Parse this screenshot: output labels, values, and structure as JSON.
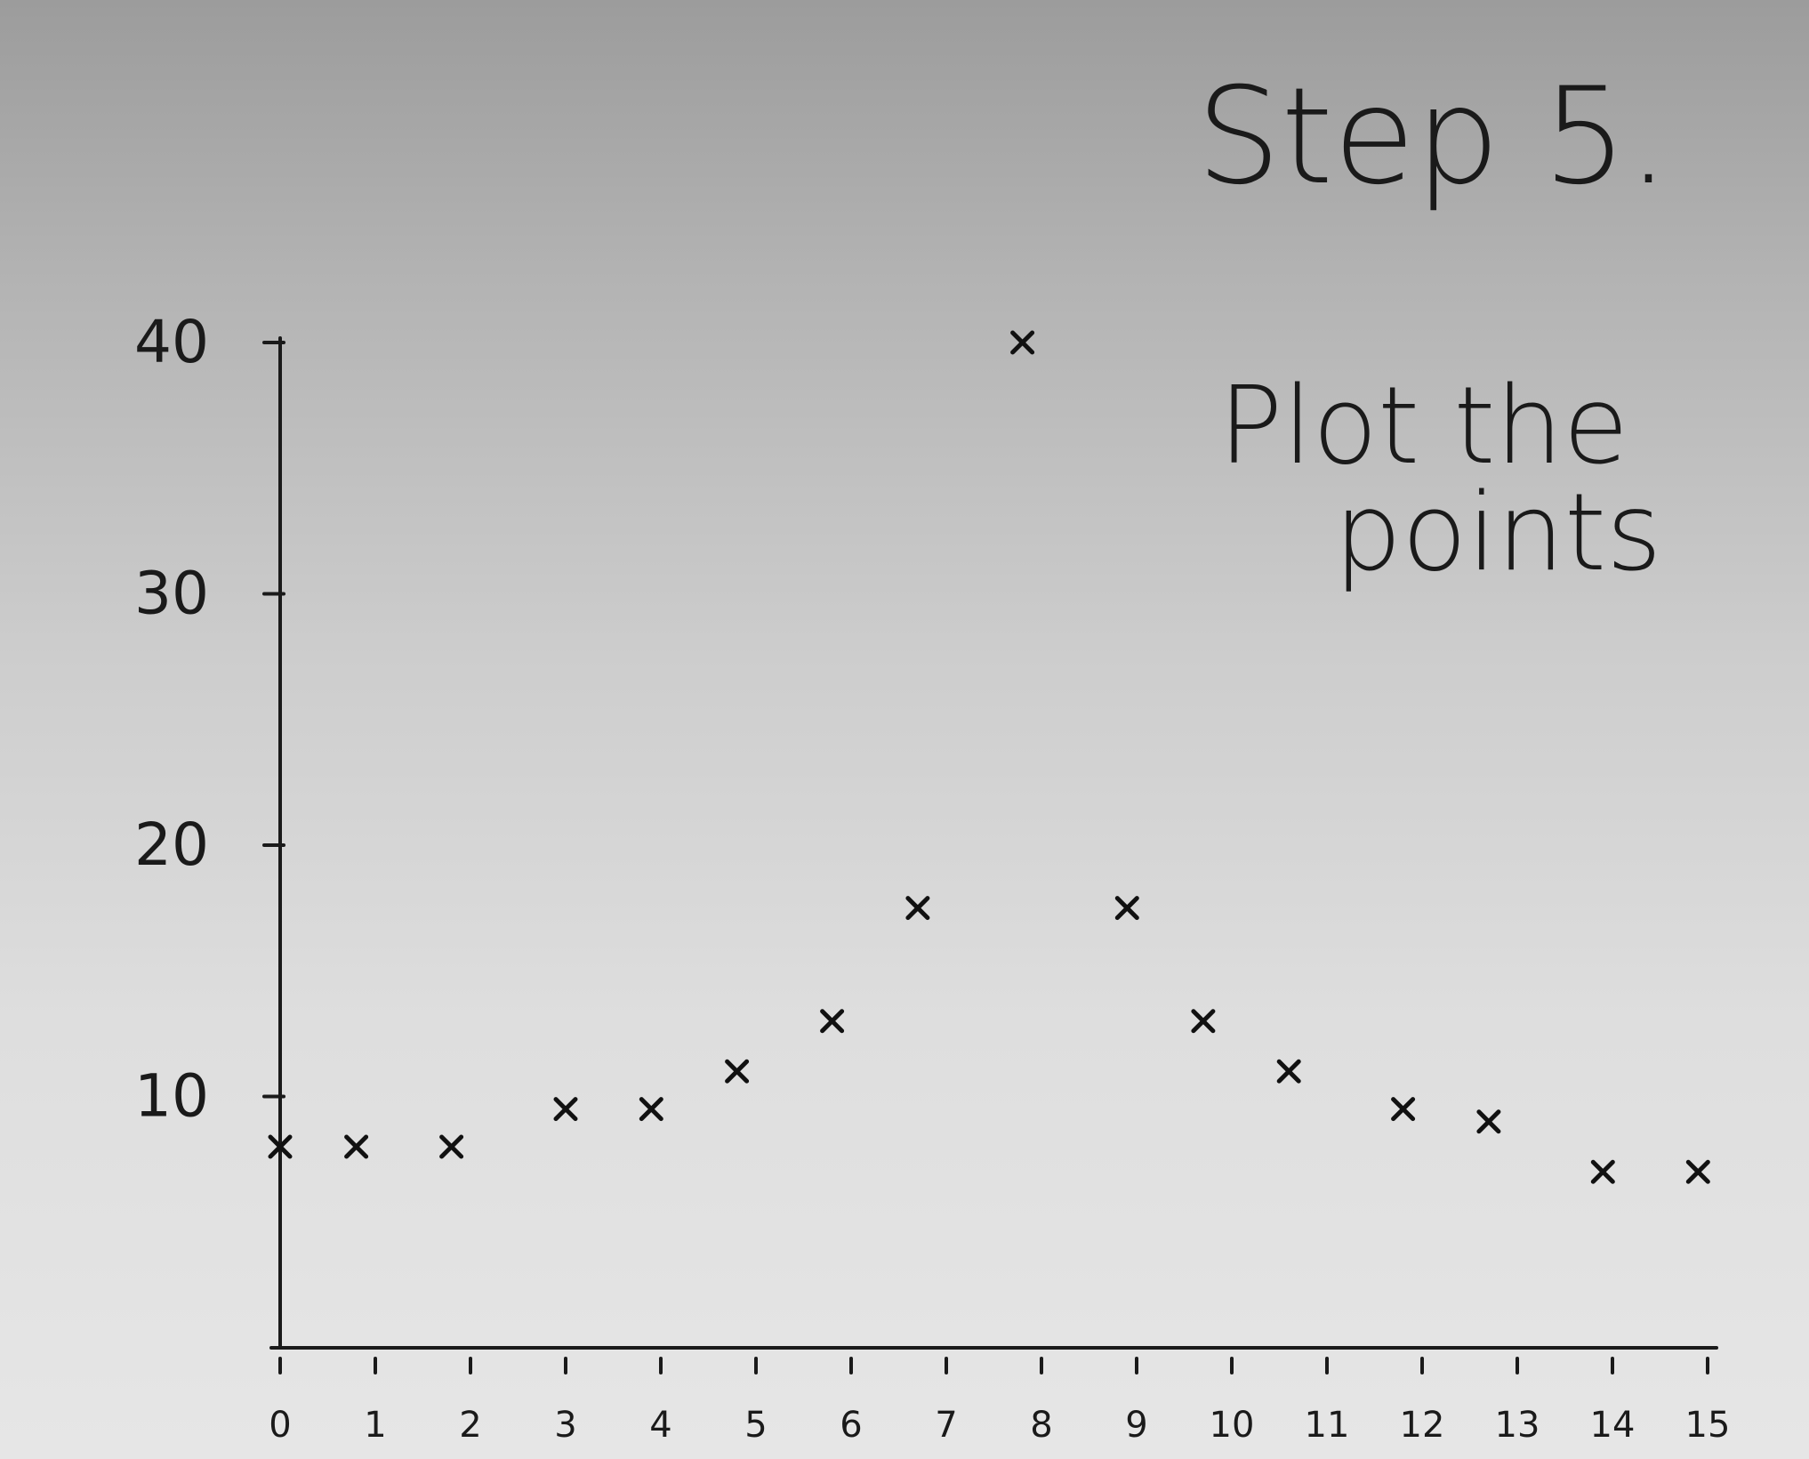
{
  "note": {
    "step": "Step 5.",
    "instruction_line1": "Plot the",
    "instruction_line2": "points"
  },
  "chart_data": {
    "type": "scatter",
    "title": "",
    "xlabel": "",
    "ylabel": "",
    "xlim": [
      0,
      15
    ],
    "ylim": [
      0,
      40
    ],
    "x_ticks": [
      "0",
      "1",
      "2",
      "3",
      "4",
      "5",
      "6",
      "7",
      "8",
      "9",
      "10",
      "11",
      "12",
      "13",
      "14",
      "15"
    ],
    "y_ticks": [
      "10",
      "20",
      "30",
      "40"
    ],
    "grid": false,
    "marker": "x",
    "points": [
      {
        "x": 0,
        "y": 8
      },
      {
        "x": 0.8,
        "y": 8
      },
      {
        "x": 1.8,
        "y": 8
      },
      {
        "x": 3,
        "y": 9.5
      },
      {
        "x": 3.9,
        "y": 9.5
      },
      {
        "x": 4.8,
        "y": 11
      },
      {
        "x": 5.8,
        "y": 13
      },
      {
        "x": 6.7,
        "y": 17.5
      },
      {
        "x": 7.8,
        "y": 40
      },
      {
        "x": 8.9,
        "y": 17.5
      },
      {
        "x": 9.7,
        "y": 13
      },
      {
        "x": 10.6,
        "y": 11
      },
      {
        "x": 11.8,
        "y": 9.5
      },
      {
        "x": 12.7,
        "y": 9
      },
      {
        "x": 13.9,
        "y": 7
      },
      {
        "x": 14.9,
        "y": 7
      }
    ]
  }
}
